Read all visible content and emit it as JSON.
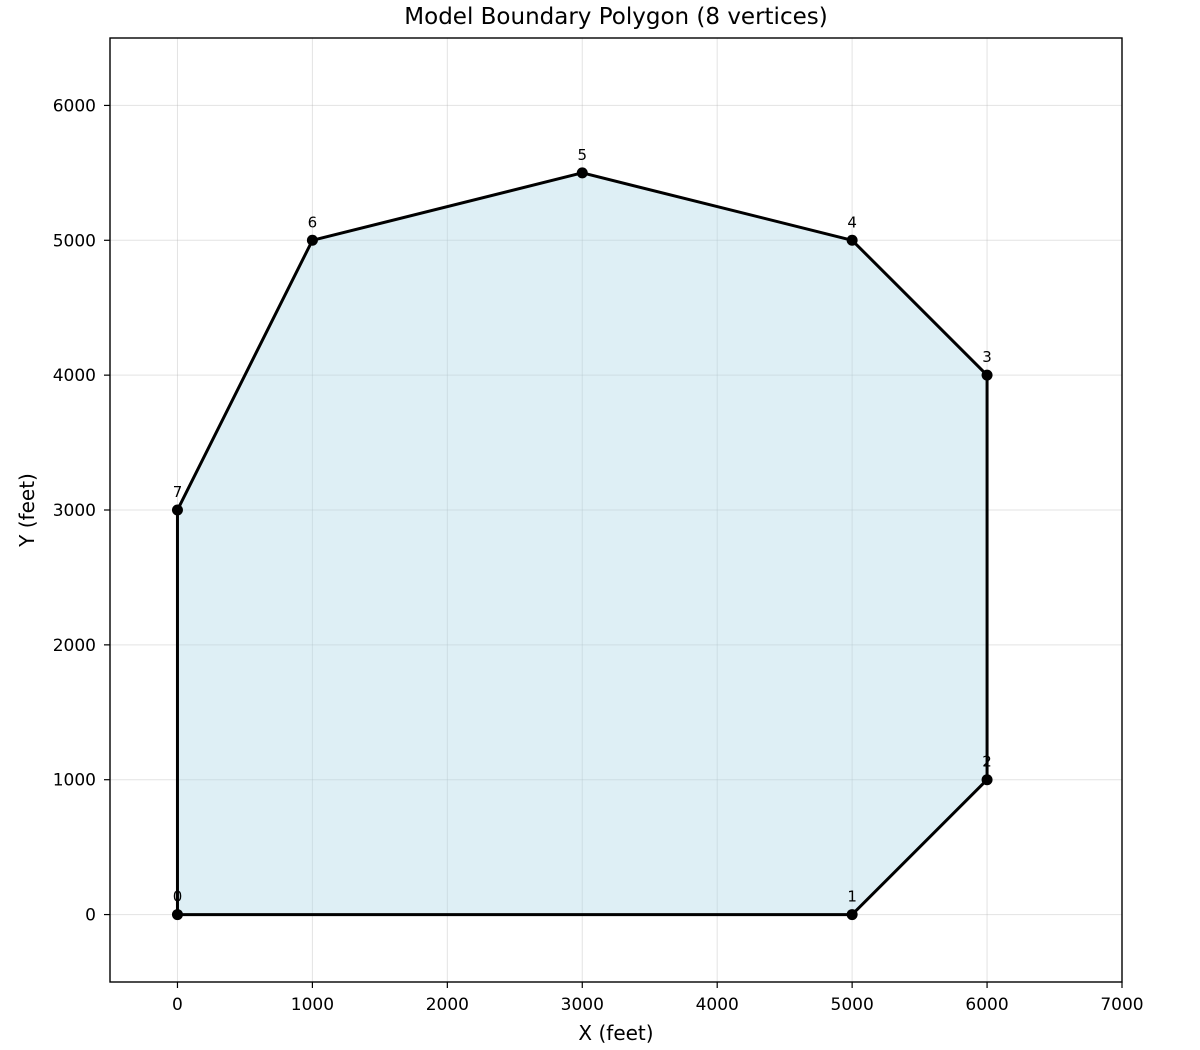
{
  "chart_data": {
    "type": "area",
    "title": "Model Boundary Polygon (8 vertices)",
    "xlabel": "X (feet)",
    "ylabel": "Y (feet)",
    "xlim": [
      -500,
      7000
    ],
    "ylim": [
      -500,
      6500
    ],
    "xticks": [
      0,
      1000,
      2000,
      3000,
      4000,
      5000,
      6000,
      7000
    ],
    "yticks": [
      0,
      1000,
      2000,
      3000,
      4000,
      5000,
      6000
    ],
    "grid": true,
    "fill_color": "#add8e6",
    "line_color": "#000000",
    "vertices": [
      {
        "label": "0",
        "x": 0,
        "y": 0
      },
      {
        "label": "1",
        "x": 5000,
        "y": 0
      },
      {
        "label": "2",
        "x": 6000,
        "y": 1000
      },
      {
        "label": "3",
        "x": 6000,
        "y": 4000
      },
      {
        "label": "4",
        "x": 5000,
        "y": 5000
      },
      {
        "label": "5",
        "x": 3000,
        "y": 5500
      },
      {
        "label": "6",
        "x": 1000,
        "y": 5000
      },
      {
        "label": "7",
        "x": 0,
        "y": 3000
      }
    ]
  }
}
